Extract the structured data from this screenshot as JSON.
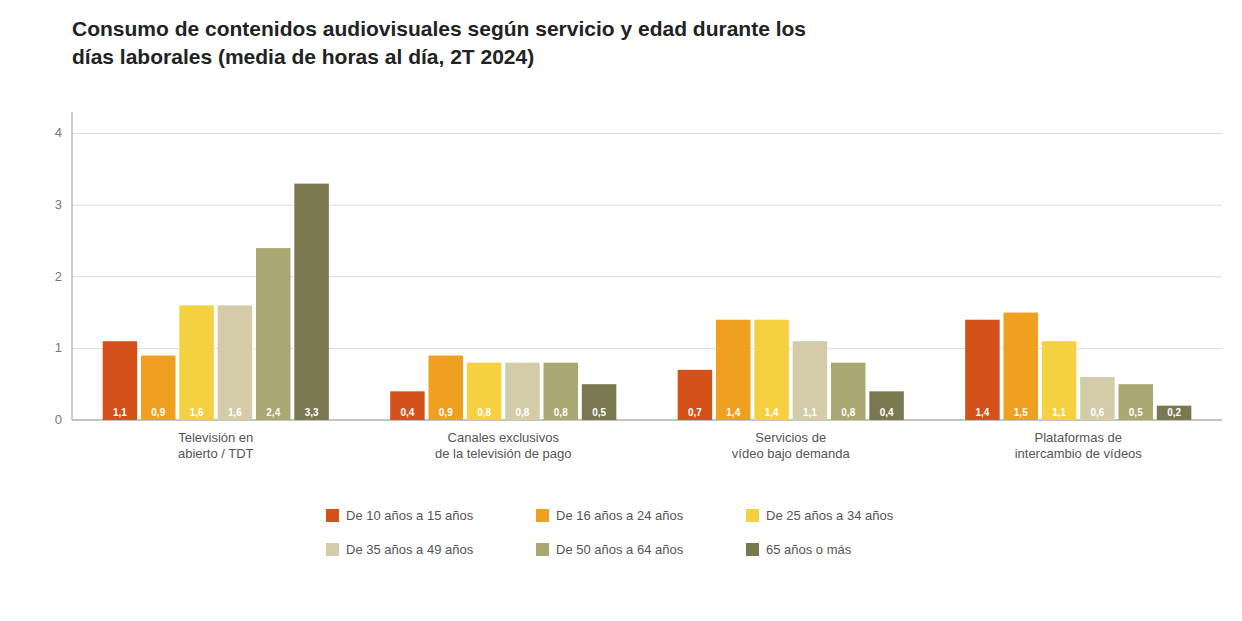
{
  "chart_data": {
    "type": "bar",
    "title": "Consumo de contenidos audiovisuales según servicio y edad durante los\ndías laborales (media de horas al día, 2T 2024)",
    "categories": [
      "Televisión en\nabierto / TDT",
      "Canales exclusivos\nde la televisión de pago",
      "Servicios de\nvídeo bajo demanda",
      "Plataformas de\nintercambio de vídeos"
    ],
    "series": [
      {
        "name": "De 10 años a 15 años",
        "color": "#D4521A",
        "values": [
          1.1,
          0.4,
          0.7,
          1.4
        ],
        "value_labels": [
          "1,1",
          "0,4",
          "0,7",
          "1,4"
        ]
      },
      {
        "name": "De 16 años a 24 años",
        "color": "#F0A020",
        "values": [
          0.9,
          0.9,
          1.4,
          1.5
        ],
        "value_labels": [
          "0,9",
          "0,9",
          "1,4",
          "1,5"
        ]
      },
      {
        "name": "De 25 años a 34 años",
        "color": "#F5D040",
        "values": [
          1.6,
          0.8,
          1.4,
          1.1
        ],
        "value_labels": [
          "1,6",
          "0,8",
          "1,4",
          "1,1"
        ]
      },
      {
        "name": "De 35 años a 49 años",
        "color": "#D4CBA8",
        "values": [
          1.6,
          0.8,
          1.1,
          0.6
        ],
        "value_labels": [
          "1,6",
          "0,8",
          "1,1",
          "0,6"
        ]
      },
      {
        "name": "De 50 años a 64 años",
        "color": "#A8A870",
        "values": [
          2.4,
          0.8,
          0.8,
          0.5
        ],
        "value_labels": [
          "2,4",
          "0,8",
          "0,8",
          "0,5"
        ]
      },
      {
        "name": "65 años o más",
        "color": "#7A7850",
        "values": [
          3.3,
          0.5,
          0.4,
          0.2
        ],
        "value_labels": [
          "3,3",
          "0,5",
          "0,4",
          "0,2"
        ]
      }
    ],
    "ylim": [
      0,
      4.3
    ],
    "yticks": [
      0,
      1,
      2,
      3,
      4
    ],
    "grid": true,
    "legend": "bottom",
    "data_labels": true
  }
}
